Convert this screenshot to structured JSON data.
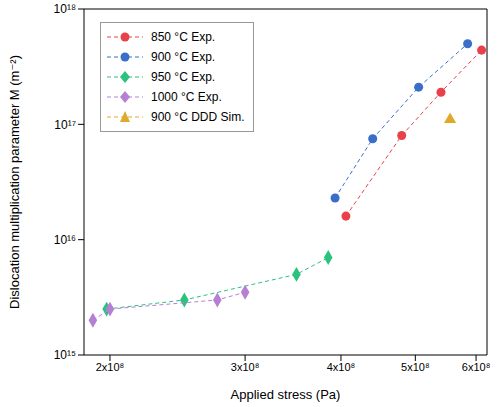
{
  "chart_data": {
    "type": "line",
    "log": true,
    "grid": false,
    "legend": "upper left",
    "x_label": "Applied stress (Pa)",
    "y_label": "Dislocation multiplication parameter M (m⁻²)",
    "xlim": [
      185000000,
      620000000
    ],
    "ylim": [
      1000000000000000.0,
      1e+18
    ],
    "xticks": [
      {
        "value": 200000000,
        "label": "2x10⁸"
      },
      {
        "value": 300000000,
        "label": "3x10⁸"
      },
      {
        "value": 400000000,
        "label": "4x10⁸"
      },
      {
        "value": 500000000,
        "label": "5x10⁸"
      },
      {
        "value": 600000000,
        "label": "6x10⁸"
      }
    ],
    "yticks": [
      {
        "value": 1000000000000000.0,
        "label": "10¹⁵"
      },
      {
        "value": 1e+16,
        "label": "10¹⁶"
      },
      {
        "value": 1e+17,
        "label": "10¹⁷"
      },
      {
        "value": 1e+18,
        "label": "10¹⁸"
      }
    ],
    "series": [
      {
        "name": "850 °C Exp.",
        "color": "#e8414a",
        "marker": "circle",
        "line_style": "dashed",
        "x": [
          406000000,
          480000000,
          540000000,
          610000000
        ],
        "values": [
          1.6e+16,
          8e+16,
          1.9e+17,
          4.4e+17
        ]
      },
      {
        "name": "900 °C Exp.",
        "color": "#3a6fc9",
        "marker": "circle",
        "line_style": "dashed",
        "x": [
          393000000,
          440000000,
          505000000,
          585000000
        ],
        "values": [
          2.3e+16,
          7.5e+16,
          2.1e+17,
          5e+17
        ]
      },
      {
        "name": "950 °C Exp.",
        "color": "#2bc27e",
        "marker": "diamond",
        "line_style": "dashed",
        "x": [
          198000000,
          250000000,
          350000000,
          385000000
        ],
        "values": [
          2500000000000000.0,
          3000000000000000.0,
          5000000000000000.0,
          7000000000000000.0
        ]
      },
      {
        "name": "1000 °C Exp.",
        "color": "#b57fd6",
        "marker": "diamond",
        "line_style": "dashed",
        "x": [
          190000000,
          200000000,
          276000000,
          300000000
        ],
        "values": [
          2000000000000000.0,
          2500000000000000.0,
          3000000000000000.0,
          3500000000000000.0
        ]
      },
      {
        "name": "900 °C DDD Sim.",
        "color": "#e0a92a",
        "marker": "triangle",
        "line_style": "dashed",
        "x": [
          555000000
        ],
        "values": [
          1.1e+17
        ]
      }
    ]
  }
}
